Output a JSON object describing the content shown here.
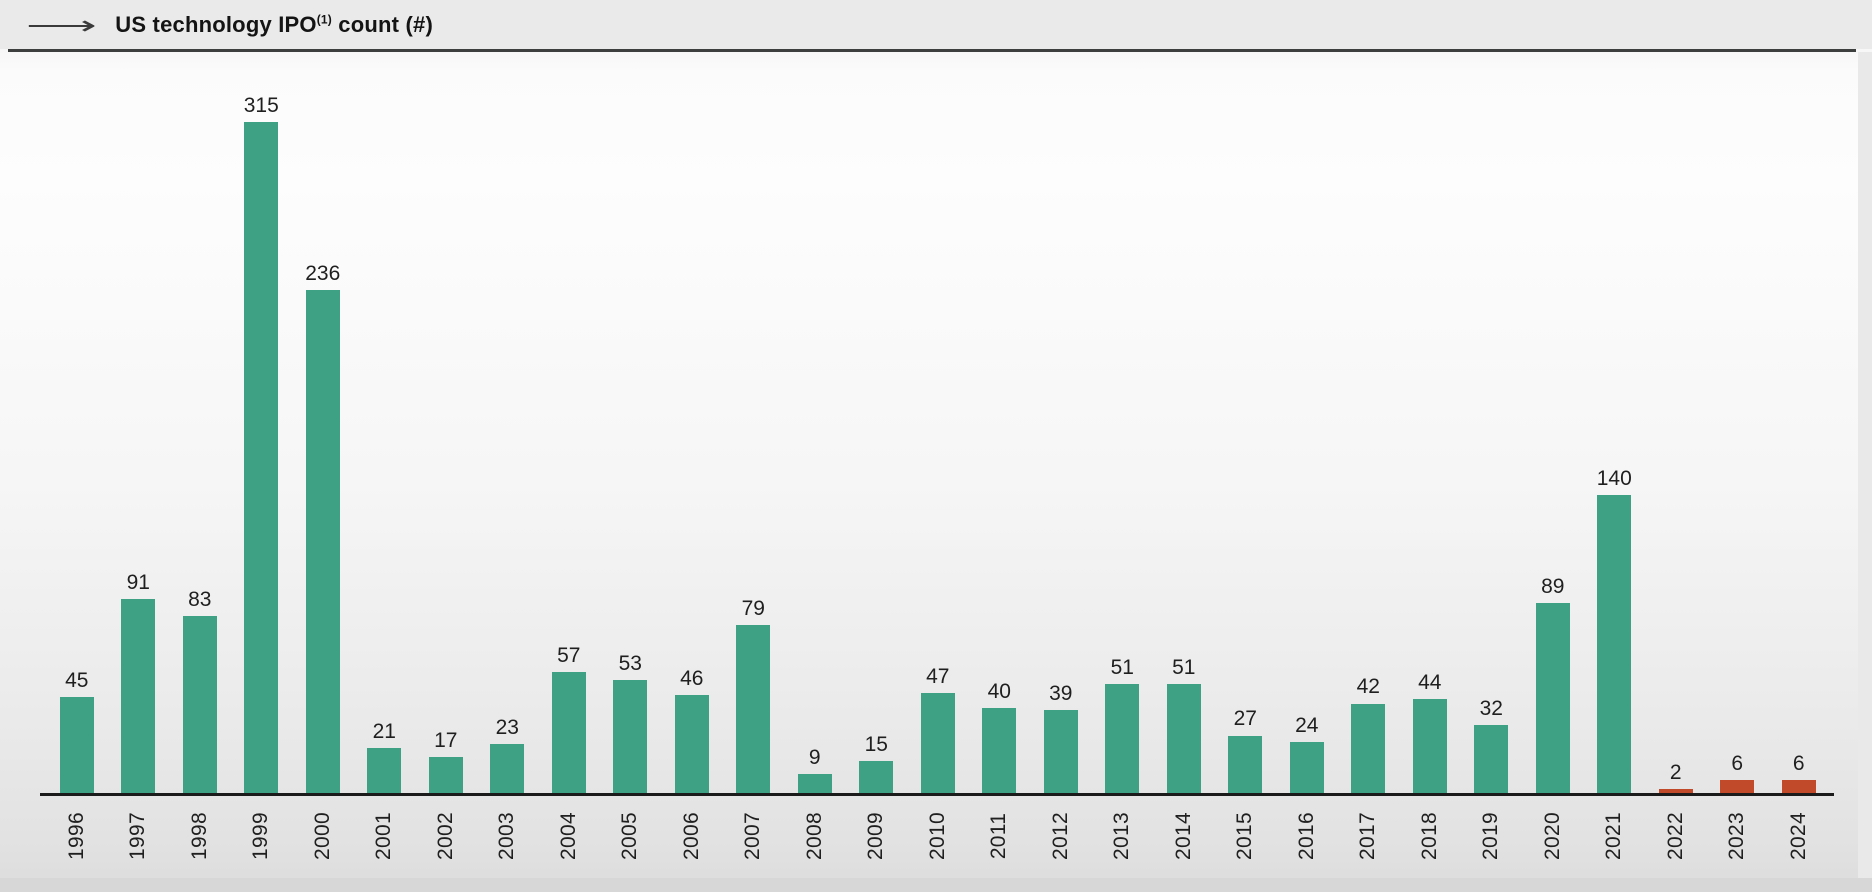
{
  "header": {
    "title_prefix": "US technology IPO",
    "title_superscript": "(1)",
    "title_suffix": " count (#)"
  },
  "icons": {
    "title_arrow": "⟶"
  },
  "colors": {
    "bar_green": "#3fa183",
    "bar_red": "#c04a2a",
    "axis": "#1b1b1b",
    "title_text": "#141414"
  },
  "chart_data": {
    "type": "bar",
    "title": "US technology IPO(1) count (#)",
    "xlabel": "",
    "ylabel": "",
    "categories": [
      "1996",
      "1997",
      "1998",
      "1999",
      "2000",
      "2001",
      "2002",
      "2003",
      "2004",
      "2005",
      "2006",
      "2007",
      "2008",
      "2009",
      "2010",
      "2011",
      "2012",
      "2013",
      "2014",
      "2015",
      "2016",
      "2017",
      "2018",
      "2019",
      "2020",
      "2021",
      "2022",
      "2023",
      "2024"
    ],
    "values": [
      45,
      91,
      83,
      315,
      236,
      21,
      17,
      23,
      57,
      53,
      46,
      79,
      9,
      15,
      47,
      40,
      39,
      51,
      51,
      27,
      24,
      42,
      44,
      32,
      89,
      140,
      2,
      6,
      6
    ],
    "bar_color": "#3fa183",
    "highlight_color": "#c04a2a",
    "highlight_categories": [
      "2022",
      "2023",
      "2024"
    ],
    "value_labels": true,
    "grid": false,
    "legend": false,
    "ylim": [
      0,
      330
    ],
    "x_tick_rotation": -90
  }
}
